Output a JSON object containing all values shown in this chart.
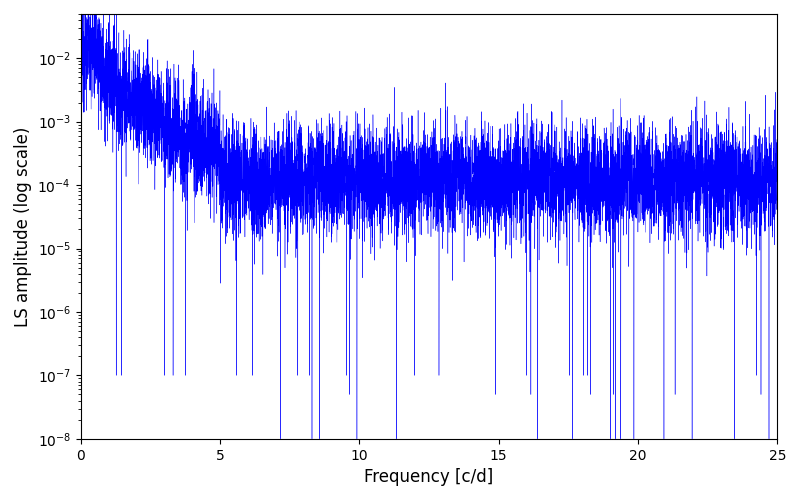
{
  "title": "",
  "xlabel": "Frequency [c/d]",
  "ylabel": "LS amplitude (log scale)",
  "line_color": "#0000ff",
  "xlim": [
    0,
    25
  ],
  "ylim": [
    1e-08,
    0.05
  ],
  "yscale": "log",
  "figsize": [
    8.0,
    5.0
  ],
  "dpi": 100,
  "seed": 12345,
  "n_points": 8000,
  "freq_max": 25.0,
  "line_width": 0.3
}
